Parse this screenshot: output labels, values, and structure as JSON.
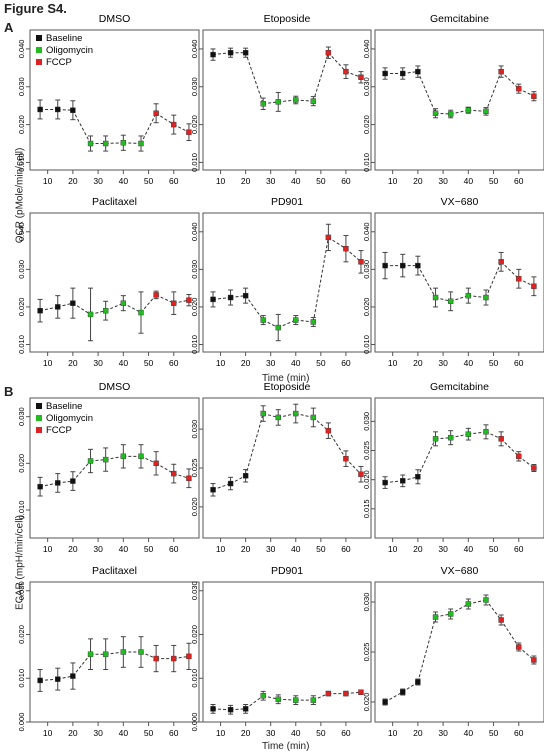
{
  "figure_title": "Figure S4.",
  "sections": [
    {
      "letter": "A",
      "ylabel": "OCR (pMole/min/cell)",
      "xlabel": "Time (min)"
    },
    {
      "letter": "B",
      "ylabel": "ECAR (mpH/min/cell)",
      "xlabel": "Time (min)"
    }
  ],
  "legend": [
    {
      "label": "Baseline",
      "color": "#111111"
    },
    {
      "label": "Oligomycin",
      "color": "#22bb22"
    },
    {
      "label": "FCCP",
      "color": "#dd2222"
    }
  ],
  "chart_data": [
    {
      "type": "line",
      "section": "A",
      "title": "DMSO",
      "ylim": [
        0.008,
        0.045
      ],
      "yticks": [
        0.01,
        0.02,
        0.03,
        0.04
      ],
      "ytick_labels": [
        "0.010",
        "0.020",
        "0.030",
        "0.040"
      ],
      "xlim": [
        3,
        70
      ],
      "xticks": [
        10,
        20,
        30,
        40,
        50,
        60
      ],
      "x": [
        7,
        14,
        20,
        27,
        33,
        40,
        47,
        53,
        60,
        66
      ],
      "y": [
        0.024,
        0.024,
        0.0238,
        0.015,
        0.015,
        0.0152,
        0.015,
        0.023,
        0.02,
        0.018
      ],
      "err": [
        0.0025,
        0.0025,
        0.0025,
        0.002,
        0.002,
        0.002,
        0.002,
        0.0025,
        0.0025,
        0.0022
      ]
    },
    {
      "type": "line",
      "section": "A",
      "title": "Etoposide",
      "ylim": [
        0.008,
        0.045
      ],
      "yticks": [
        0.01,
        0.02,
        0.03,
        0.04
      ],
      "ytick_labels": [
        "0.010",
        "0.020",
        "0.030",
        "0.040"
      ],
      "xlim": [
        3,
        70
      ],
      "xticks": [
        10,
        20,
        30,
        40,
        50,
        60
      ],
      "x": [
        7,
        14,
        20,
        27,
        33,
        40,
        47,
        53,
        60,
        66
      ],
      "y": [
        0.0385,
        0.039,
        0.039,
        0.0255,
        0.026,
        0.0265,
        0.0262,
        0.039,
        0.034,
        0.0325
      ],
      "err": [
        0.0015,
        0.0012,
        0.0012,
        0.0015,
        0.0025,
        0.001,
        0.0012,
        0.0015,
        0.0018,
        0.0015
      ]
    },
    {
      "type": "line",
      "section": "A",
      "title": "Gemcitabine",
      "ylim": [
        0.008,
        0.045
      ],
      "yticks": [
        0.01,
        0.02,
        0.03,
        0.04
      ],
      "ytick_labels": [
        "0.010",
        "0.020",
        "0.030",
        "0.040"
      ],
      "xlim": [
        3,
        70
      ],
      "xticks": [
        10,
        20,
        30,
        40,
        50,
        60
      ],
      "x": [
        7,
        14,
        20,
        27,
        33,
        40,
        47,
        53,
        60,
        66
      ],
      "y": [
        0.0335,
        0.0335,
        0.034,
        0.023,
        0.0228,
        0.0238,
        0.0235,
        0.034,
        0.0295,
        0.0275
      ],
      "err": [
        0.0015,
        0.0015,
        0.0015,
        0.0012,
        0.001,
        0.0008,
        0.001,
        0.0015,
        0.0012,
        0.0012
      ]
    },
    {
      "type": "line",
      "section": "A",
      "title": "Paclitaxel",
      "ylim": [
        0.008,
        0.045
      ],
      "yticks": [
        0.01,
        0.02,
        0.03,
        0.04
      ],
      "ytick_labels": [
        "0.010",
        "0.020",
        "0.030",
        "0.040"
      ],
      "xlim": [
        3,
        70
      ],
      "xticks": [
        10,
        20,
        30,
        40,
        50,
        60
      ],
      "x": [
        7,
        14,
        20,
        27,
        33,
        40,
        47,
        53,
        60,
        66
      ],
      "y": [
        0.019,
        0.02,
        0.021,
        0.018,
        0.019,
        0.021,
        0.0185,
        0.0232,
        0.021,
        0.0218
      ],
      "err": [
        0.003,
        0.003,
        0.004,
        0.007,
        0.0025,
        0.002,
        0.0055,
        0.001,
        0.003,
        0.0015
      ]
    },
    {
      "type": "line",
      "section": "A",
      "title": "PD901",
      "ylim": [
        0.008,
        0.045
      ],
      "yticks": [
        0.01,
        0.02,
        0.03,
        0.04
      ],
      "ytick_labels": [
        "0.010",
        "0.020",
        "0.030",
        "0.040"
      ],
      "xlim": [
        3,
        70
      ],
      "xticks": [
        10,
        20,
        30,
        40,
        50,
        60
      ],
      "x": [
        7,
        14,
        20,
        27,
        33,
        40,
        47,
        53,
        60,
        66
      ],
      "y": [
        0.022,
        0.0225,
        0.023,
        0.0165,
        0.0145,
        0.0165,
        0.016,
        0.0385,
        0.0355,
        0.032
      ],
      "err": [
        0.002,
        0.002,
        0.002,
        0.0012,
        0.0035,
        0.0012,
        0.0012,
        0.0035,
        0.0035,
        0.003
      ]
    },
    {
      "type": "line",
      "section": "A",
      "title": "VX−680",
      "ylim": [
        0.008,
        0.045
      ],
      "yticks": [
        0.01,
        0.02,
        0.03,
        0.04
      ],
      "ytick_labels": [
        "0.010",
        "0.020",
        "0.030",
        "0.040"
      ],
      "xlim": [
        3,
        70
      ],
      "xticks": [
        10,
        20,
        30,
        40,
        50,
        60
      ],
      "x": [
        7,
        14,
        20,
        27,
        33,
        40,
        47,
        53,
        60,
        66
      ],
      "y": [
        0.031,
        0.031,
        0.031,
        0.0225,
        0.0215,
        0.023,
        0.0225,
        0.032,
        0.0275,
        0.0255
      ],
      "err": [
        0.0035,
        0.003,
        0.0025,
        0.0025,
        0.0025,
        0.002,
        0.002,
        0.0025,
        0.0025,
        0.0025
      ]
    },
    {
      "type": "line",
      "section": "B",
      "title": "DMSO",
      "ylim": [
        0.004,
        0.034
      ],
      "yticks": [
        0.01,
        0.02,
        0.03
      ],
      "ytick_labels": [
        "0.010",
        "0.020",
        "0.030"
      ],
      "xlim": [
        3,
        70
      ],
      "xticks": [
        10,
        20,
        30,
        40,
        50,
        60
      ],
      "x": [
        7,
        14,
        20,
        27,
        33,
        40,
        47,
        53,
        60,
        66
      ],
      "y": [
        0.015,
        0.0158,
        0.0162,
        0.0205,
        0.0208,
        0.0215,
        0.0215,
        0.02,
        0.0178,
        0.0168
      ],
      "err": [
        0.002,
        0.002,
        0.002,
        0.0025,
        0.0025,
        0.0025,
        0.0025,
        0.0025,
        0.002,
        0.002
      ]
    },
    {
      "type": "line",
      "section": "B",
      "title": "Etoposide",
      "ylim": [
        0.016,
        0.034
      ],
      "yticks": [
        0.02,
        0.025,
        0.03
      ],
      "ytick_labels": [
        "0.020",
        "0.025",
        "0.030"
      ],
      "xlim": [
        3,
        70
      ],
      "xticks": [
        10,
        20,
        30,
        40,
        50,
        60
      ],
      "x": [
        7,
        14,
        20,
        27,
        33,
        40,
        47,
        53,
        60,
        66
      ],
      "y": [
        0.0222,
        0.023,
        0.024,
        0.032,
        0.0315,
        0.032,
        0.0315,
        0.0298,
        0.0262,
        0.0242
      ],
      "err": [
        0.0008,
        0.0008,
        0.0008,
        0.001,
        0.001,
        0.0012,
        0.0012,
        0.001,
        0.001,
        0.001
      ]
    },
    {
      "type": "line",
      "section": "B",
      "title": "Gemcitabine",
      "ylim": [
        0.01,
        0.034
      ],
      "yticks": [
        0.015,
        0.02,
        0.025,
        0.03
      ],
      "ytick_labels": [
        "0.015",
        "0.020",
        "0.025",
        "0.030"
      ],
      "xlim": [
        3,
        70
      ],
      "xticks": [
        10,
        20,
        30,
        40,
        50,
        60
      ],
      "x": [
        7,
        14,
        20,
        27,
        33,
        40,
        47,
        53,
        60,
        66
      ],
      "y": [
        0.0195,
        0.0198,
        0.0205,
        0.027,
        0.0272,
        0.0278,
        0.0282,
        0.027,
        0.024,
        0.022
      ],
      "err": [
        0.001,
        0.001,
        0.0012,
        0.0012,
        0.0012,
        0.001,
        0.0012,
        0.0012,
        0.0008,
        0.0006
      ]
    },
    {
      "type": "line",
      "section": "B",
      "title": "Paclitaxel",
      "ylim": [
        0.0,
        0.032
      ],
      "yticks": [
        0.0,
        0.01,
        0.02,
        0.03
      ],
      "ytick_labels": [
        "0.000",
        "0.010",
        "0.020",
        "0.030"
      ],
      "xlim": [
        3,
        70
      ],
      "xticks": [
        10,
        20,
        30,
        40,
        50,
        60
      ],
      "x": [
        7,
        14,
        20,
        27,
        33,
        40,
        47,
        53,
        60,
        66
      ],
      "y": [
        0.0095,
        0.0098,
        0.0105,
        0.0155,
        0.0155,
        0.016,
        0.016,
        0.0145,
        0.0145,
        0.015
      ],
      "err": [
        0.0025,
        0.0025,
        0.003,
        0.0035,
        0.0035,
        0.0035,
        0.0035,
        0.003,
        0.003,
        0.003
      ]
    },
    {
      "type": "line",
      "section": "B",
      "title": "PD901",
      "ylim": [
        0.0,
        0.032
      ],
      "yticks": [
        0.0,
        0.01,
        0.02,
        0.03
      ],
      "ytick_labels": [
        "0.000",
        "0.010",
        "0.020",
        "0.030"
      ],
      "xlim": [
        3,
        70
      ],
      "xticks": [
        10,
        20,
        30,
        40,
        50,
        60
      ],
      "x": [
        7,
        14,
        20,
        27,
        33,
        40,
        47,
        53,
        60,
        66
      ],
      "y": [
        0.003,
        0.0028,
        0.003,
        0.006,
        0.0052,
        0.005,
        0.005,
        0.0065,
        0.0065,
        0.0068
      ],
      "err": [
        0.001,
        0.001,
        0.001,
        0.001,
        0.001,
        0.001,
        0.001,
        0.0005,
        0.0005,
        0.0005
      ]
    },
    {
      "type": "line",
      "section": "B",
      "title": "VX−680",
      "ylim": [
        0.018,
        0.032
      ],
      "yticks": [
        0.02,
        0.025,
        0.03
      ],
      "ytick_labels": [
        "0.020",
        "0.025",
        "0.030"
      ],
      "xlim": [
        3,
        70
      ],
      "xticks": [
        10,
        20,
        30,
        40,
        50,
        60
      ],
      "x": [
        7,
        14,
        20,
        27,
        33,
        40,
        47,
        53,
        60,
        66
      ],
      "y": [
        0.02,
        0.021,
        0.022,
        0.0285,
        0.0288,
        0.0298,
        0.0302,
        0.0282,
        0.0255,
        0.0242
      ],
      "err": [
        0.0003,
        0.0003,
        0.0003,
        0.0005,
        0.0005,
        0.0005,
        0.0005,
        0.0005,
        0.0004,
        0.0004
      ]
    }
  ]
}
